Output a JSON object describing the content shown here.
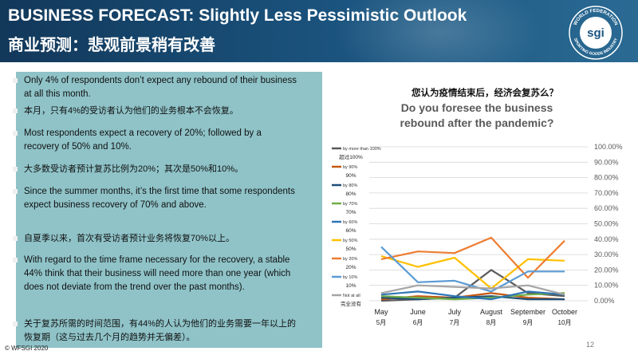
{
  "header": {
    "title_en": "BUSINESS FORECAST: Slightly Less Pessimistic Outlook",
    "title_cn": "商业预测：悲观前景稍有改善",
    "logo": {
      "ring_top": "WORLD FEDERATION",
      "ring_bottom": "SPORTING GOODS INDUSTRY",
      "center": "sgi"
    }
  },
  "bullets": [
    {
      "text": "Only 4% of respondents don’t expect any rebound of their business at all this month.",
      "lang": "en"
    },
    {
      "text": "本月，只有4%的受访者认为他们的业务根本不会恢复。",
      "lang": "cn"
    },
    {
      "text": "Most respondents expect a recovery of 20%; followed by a recovery of 50% and 10%.",
      "lang": "en"
    },
    {
      "text": "大多数受访者预计复苏比例为20%；其次是50%和10%。",
      "lang": "cn"
    },
    {
      "text": "Since the summer months, it’s the first time that some respondents expect business recovery of 70% and above.",
      "lang": "en"
    },
    {
      "text": "自夏季以来，首次有受访者预计业务将恢复70%以上。",
      "lang": "cn"
    },
    {
      "text": "With regard to the time frame necessary for the recovery, a stable 44% think that their business will need more than one year (which does not deviate from the trend over the past months).",
      "lang": "en"
    },
    {
      "text": "关于复苏所需的时间范围，有44%的人认为他们的业务需要一年以上的恢复期（这与过去几个月的趋势并无偏差）。",
      "lang": "cn"
    }
  ],
  "footer": {
    "copyright": "© WFSGI 2020",
    "page_number": "12"
  },
  "chart_data": {
    "type": "line",
    "title_cn": "您认为疫情结束后，经济会复苏么？",
    "title_en": "Do you foresee the business rebound after the pandemic?",
    "categories": [
      "May",
      "June",
      "July",
      "August",
      "September",
      "October"
    ],
    "categories_cn": [
      "5月",
      "6月",
      "7月",
      "8月",
      "9月",
      "10月"
    ],
    "y_ticks": [
      "0.00%",
      "10.00%",
      "20.00%",
      "30.00%",
      "40.00%",
      "50.00%",
      "60.00%",
      "70.00%",
      "80.00%",
      "90.00%",
      "100.00%"
    ],
    "ylim": [
      0,
      100
    ],
    "y_axis_side": "right",
    "grid": true,
    "legend_position": "left",
    "series": [
      {
        "name": "by more than 100%",
        "name_cn": "超过100%",
        "color": "#595959",
        "values": [
          0,
          1,
          2,
          20,
          5,
          3
        ]
      },
      {
        "name": "by 90%",
        "name_cn": "90%",
        "color": "#c55a11",
        "values": [
          1,
          3,
          2,
          5,
          2,
          1
        ]
      },
      {
        "name": "by 80%",
        "name_cn": "80%",
        "color": "#1f4e79",
        "values": [
          2,
          1,
          2,
          3,
          1,
          1
        ]
      },
      {
        "name": "by 70%",
        "name_cn": "70%",
        "color": "#70ad47",
        "values": [
          3,
          2,
          1,
          2,
          4,
          5
        ]
      },
      {
        "name": "by 60%",
        "name_cn": "60%",
        "color": "#2e75b6",
        "values": [
          4,
          6,
          3,
          1,
          6,
          4
        ]
      },
      {
        "name": "by 50%",
        "name_cn": "50%",
        "color": "#ffc000",
        "values": [
          29,
          22,
          28,
          8,
          27,
          26
        ]
      },
      {
        "name": "by 20%",
        "name_cn": "20%",
        "color": "#ed7d31",
        "values": [
          27,
          32,
          31,
          41,
          15,
          39
        ]
      },
      {
        "name": "by 10%",
        "name_cn": "10%",
        "color": "#5b9bd5",
        "values": [
          35,
          12,
          13,
          6,
          19,
          19
        ]
      },
      {
        "name": "Not at all",
        "name_cn": "完全没有",
        "color": "#a5a5a5",
        "values": [
          5,
          10,
          9,
          8,
          10,
          4
        ]
      }
    ]
  }
}
